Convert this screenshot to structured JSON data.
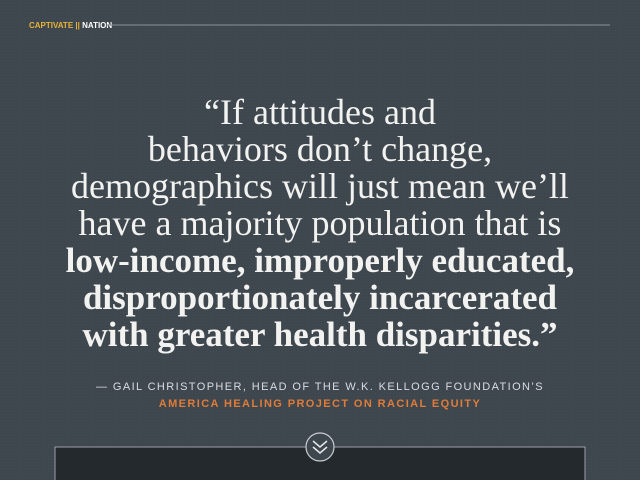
{
  "header": {
    "brand": [
      "CAPTIVATE",
      "||",
      "NATION"
    ]
  },
  "quote": {
    "light_lines": [
      "“If attitudes and",
      "behaviors don’t change,",
      "demographics will just mean we’ll",
      "have a majority population that is"
    ],
    "bold_lines": [
      "low-income, improperly educated,",
      "disproportionately incarcerated",
      "with greater health disparities.”"
    ]
  },
  "attribution": {
    "line1": "— GAIL CHRISTOPHER, HEAD OF THE W.K. KELLOGG FOUNDATION’S",
    "line2": "AMERICA HEALING PROJECT ON RACIAL EQUITY"
  }
}
